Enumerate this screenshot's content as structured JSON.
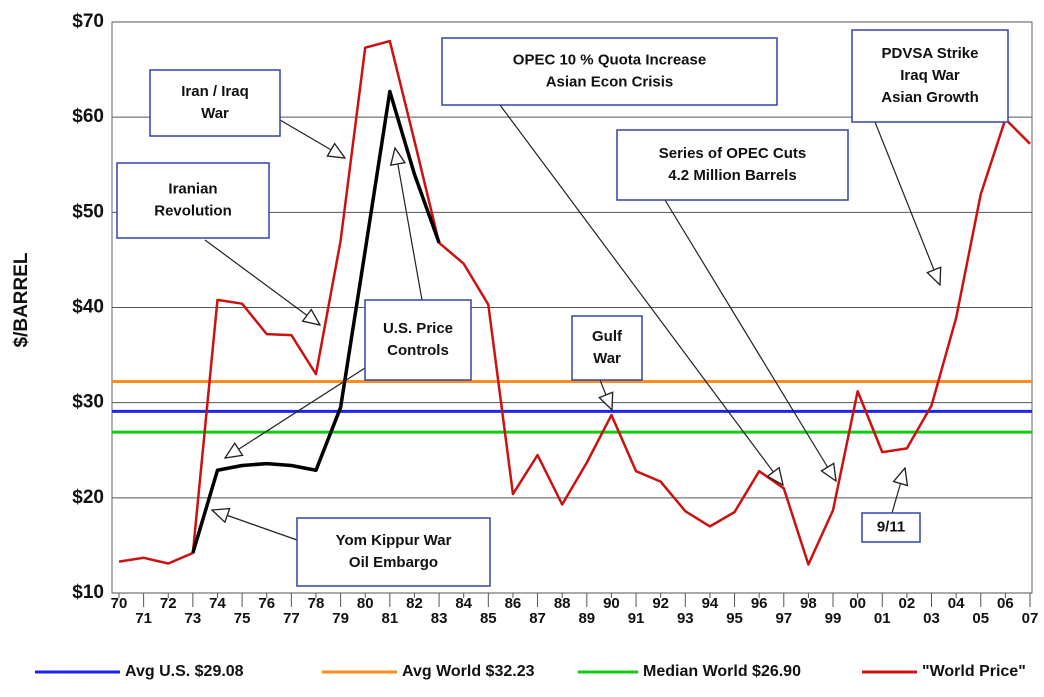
{
  "chart_data": {
    "type": "line",
    "y_label": "$/BARREL",
    "categories": [
      "70",
      "71",
      "72",
      "73",
      "74",
      "75",
      "76",
      "77",
      "78",
      "79",
      "80",
      "81",
      "82",
      "83",
      "84",
      "85",
      "86",
      "87",
      "88",
      "89",
      "90",
      "91",
      "92",
      "93",
      "94",
      "95",
      "96",
      "97",
      "98",
      "99",
      "00",
      "01",
      "02",
      "03",
      "04",
      "05",
      "06",
      "07"
    ],
    "series": [
      {
        "color": "#000000",
        "values": [
          null,
          null,
          null,
          14.2,
          22.9,
          23.4,
          23.6,
          23.4,
          22.9,
          29.5,
          46.0,
          62.7,
          54.0,
          46.8,
          null,
          null,
          null,
          null,
          null,
          null,
          null,
          null,
          null,
          null,
          null,
          null,
          null,
          null,
          null,
          null,
          null,
          null,
          null,
          null,
          null,
          null,
          null,
          null
        ]
      },
      {
        "name": "\"World Price\"",
        "color": "#cc1111",
        "values": [
          13.3,
          13.7,
          13.1,
          14.2,
          40.8,
          40.4,
          37.2,
          37.1,
          33.0,
          47.0,
          67.3,
          68.0,
          57.5,
          46.8,
          44.6,
          40.3,
          20.4,
          24.5,
          19.3,
          23.7,
          28.7,
          22.8,
          21.7,
          18.6,
          17.0,
          18.5,
          22.8,
          21.0,
          13.0,
          18.7,
          31.2,
          24.8,
          25.2,
          29.7,
          38.9,
          51.9,
          59.8,
          57.2
        ]
      }
    ],
    "reference_lines": [
      {
        "name": "Avg U.S. $29.08",
        "value": 29.08,
        "color": "#2222ee"
      },
      {
        "name": "Avg World $32.23",
        "value": 32.23,
        "color": "#ff8c1a"
      },
      {
        "name": "Median World  $26.90",
        "value": 26.9,
        "color": "#11cc11"
      }
    ],
    "ylim": [
      10,
      70
    ],
    "yticks": [
      {
        "value": 10,
        "label": "$10"
      },
      {
        "value": 20,
        "label": "$20"
      },
      {
        "value": 30,
        "label": "$30"
      },
      {
        "value": 40,
        "label": "$40"
      },
      {
        "value": 50,
        "label": "$50"
      },
      {
        "value": 60,
        "label": "$60"
      },
      {
        "value": 70,
        "label": "$70"
      }
    ],
    "grid": true,
    "annotations": [
      {
        "lines": [
          "Iran / Iraq",
          "War"
        ]
      },
      {
        "lines": [
          "Iranian",
          "Revolution"
        ]
      },
      {
        "lines": [
          "U.S. Price",
          "Controls"
        ]
      },
      {
        "lines": [
          "Gulf",
          "War"
        ]
      },
      {
        "lines": [
          "Yom Kippur War",
          "Oil Embargo"
        ]
      },
      {
        "lines": [
          "OPEC 10 % Quota Increase",
          "Asian Econ Crisis"
        ]
      },
      {
        "lines": [
          "Series of OPEC Cuts",
          "4.2 Million Barrels"
        ]
      },
      {
        "lines": [
          "PDVSA Strike",
          "Iraq War",
          "Asian Growth"
        ]
      },
      {
        "lines": [
          "9/11"
        ]
      }
    ]
  }
}
